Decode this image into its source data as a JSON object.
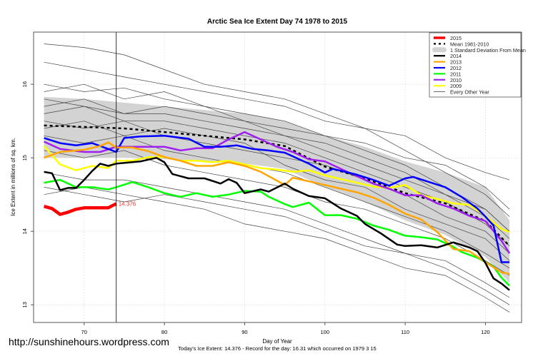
{
  "chart_data": {
    "type": "line",
    "title": "Arctic Sea Ice Extent Day 74 1978 to 2015",
    "xlabel": "Day of Year",
    "ylabel": "Ice Extent in millions of sq. km.",
    "xlim": [
      63.7,
      124.5
    ],
    "ylim": [
      12.76,
      16.71
    ],
    "xticks": [
      70,
      80,
      90,
      100,
      110,
      120
    ],
    "yticks": [
      13,
      14,
      15,
      16
    ],
    "grid": true,
    "legend_position": "top-right",
    "current_day": 74,
    "current_value_label": "14.376",
    "footer": "Today's Ice Extent: 14.376  - Record for the day: 16.31 which occurred on 1979 3 15",
    "watermark": "http://sunshinehours.wordpress.com",
    "legend": [
      {
        "label": "2015",
        "color": "#ff0000",
        "style": "thick"
      },
      {
        "label": "Mean 1981-2010",
        "color": "#000000",
        "style": "dashed"
      },
      {
        "label": "1 Standard Deviation From Mean",
        "color": "#d3d3d3",
        "style": "band"
      },
      {
        "label": "2014",
        "color": "#000000",
        "style": "line"
      },
      {
        "label": "2013",
        "color": "#ffa500",
        "style": "line"
      },
      {
        "label": "2012",
        "color": "#0000ff",
        "style": "line"
      },
      {
        "label": "2011",
        "color": "#00ff00",
        "style": "line"
      },
      {
        "label": "2010",
        "color": "#a020f0",
        "style": "line"
      },
      {
        "label": "2009",
        "color": "#ffff00",
        "style": "line"
      },
      {
        "label": "Every Other Year",
        "color": "#444444",
        "style": "thin"
      }
    ],
    "band": {
      "x": [
        65,
        70,
        75,
        80,
        85,
        90,
        95,
        100,
        105,
        110,
        115,
        120,
        123
      ],
      "upper": [
        15.83,
        15.8,
        15.75,
        15.7,
        15.65,
        15.6,
        15.5,
        15.3,
        15.15,
        14.95,
        14.8,
        14.6,
        14.15
      ],
      "lower": [
        15.0,
        15.0,
        15.0,
        14.98,
        14.95,
        14.92,
        14.85,
        14.6,
        14.4,
        14.15,
        13.95,
        13.65,
        13.3
      ]
    },
    "mean": {
      "name": "Mean 1981-2010",
      "x": [
        65,
        70,
        75,
        80,
        85,
        90,
        95,
        100,
        105,
        110,
        115,
        120,
        123
      ],
      "y": [
        15.44,
        15.42,
        15.4,
        15.35,
        15.3,
        15.25,
        15.16,
        14.88,
        14.72,
        14.52,
        14.38,
        14.14,
        13.8
      ]
    },
    "other_years": {
      "x": [
        65,
        70,
        75,
        80,
        85,
        90,
        95,
        100,
        105,
        110,
        115,
        120,
        123
      ],
      "series": [
        [
          16.55,
          16.5,
          16.4,
          16.2,
          16.0,
          15.9,
          15.8,
          15.6,
          15.4,
          15.3,
          15.0,
          14.8,
          14.7
        ],
        [
          16.3,
          16.2,
          16.1,
          16.0,
          15.9,
          15.8,
          15.7,
          15.5,
          15.4,
          15.1,
          14.8,
          14.5,
          14.2
        ],
        [
          16.0,
          15.9,
          15.95,
          15.8,
          15.7,
          15.6,
          15.5,
          15.3,
          15.1,
          14.9,
          14.6,
          14.3,
          14.0
        ],
        [
          15.8,
          15.7,
          15.6,
          15.7,
          15.6,
          15.5,
          15.3,
          15.1,
          14.9,
          14.7,
          14.5,
          14.2,
          13.9
        ],
        [
          15.6,
          15.7,
          15.5,
          15.5,
          15.4,
          15.3,
          15.2,
          15.0,
          14.8,
          14.6,
          14.4,
          14.1,
          13.8
        ],
        [
          15.5,
          15.4,
          15.5,
          15.3,
          15.2,
          15.1,
          15.0,
          14.9,
          14.7,
          14.5,
          14.2,
          14.0,
          13.7
        ],
        [
          15.4,
          15.5,
          15.3,
          15.4,
          15.3,
          15.2,
          14.9,
          14.7,
          14.6,
          14.3,
          14.1,
          13.9,
          13.6
        ],
        [
          15.3,
          15.2,
          15.3,
          15.1,
          15.0,
          14.9,
          14.8,
          14.6,
          14.4,
          14.2,
          14.0,
          13.7,
          13.5
        ],
        [
          15.7,
          15.8,
          15.6,
          15.6,
          15.5,
          15.4,
          15.3,
          15.2,
          15.0,
          14.8,
          14.5,
          14.3,
          14.0
        ],
        [
          14.8,
          14.7,
          14.7,
          14.6,
          14.5,
          14.4,
          14.3,
          14.1,
          13.9,
          13.7,
          13.6,
          13.3,
          13.1
        ],
        [
          14.5,
          14.6,
          14.5,
          14.4,
          14.3,
          14.1,
          14.0,
          13.9,
          13.7,
          13.5,
          13.4,
          13.1,
          12.9
        ],
        [
          14.6,
          14.5,
          14.4,
          14.5,
          14.4,
          14.3,
          14.2,
          14.0,
          13.8,
          13.7,
          13.5,
          13.2,
          13.0
        ],
        [
          15.9,
          16.0,
          15.8,
          15.9,
          15.7,
          15.5,
          15.4,
          15.3,
          15.2,
          15.0,
          14.9,
          14.6,
          14.3
        ],
        [
          15.1,
          15.0,
          15.1,
          14.9,
          14.8,
          14.7,
          14.6,
          14.4,
          14.3,
          14.1,
          13.9,
          13.6,
          13.4
        ]
      ]
    },
    "series": [
      {
        "name": "2009",
        "color": "#ffff00",
        "x": [
          65,
          67,
          69,
          71,
          73,
          74,
          76,
          78,
          80,
          82,
          84,
          86,
          88,
          90,
          92,
          94,
          96,
          98,
          100,
          102,
          104,
          106,
          108,
          110,
          112,
          114,
          116,
          118,
          120,
          122,
          123
        ],
        "y": [
          15.16,
          14.91,
          14.83,
          14.89,
          14.86,
          14.96,
          14.96,
          15.01,
          15.01,
          14.96,
          14.96,
          14.94,
          14.96,
          14.91,
          14.86,
          14.84,
          14.81,
          14.83,
          14.76,
          14.71,
          14.66,
          14.61,
          14.59,
          14.63,
          14.49,
          14.44,
          14.38,
          14.36,
          14.21,
          14.03,
          13.99
        ]
      },
      {
        "name": "2010",
        "color": "#a020f0",
        "x": [
          65,
          67,
          70,
          72,
          74,
          76,
          78,
          80,
          82,
          84,
          86,
          88,
          90,
          92,
          94,
          96,
          98,
          100,
          102,
          104,
          106,
          108,
          110,
          112,
          114,
          116,
          118,
          120,
          122,
          123
        ],
        "y": [
          15.22,
          15.12,
          15.08,
          15.08,
          15.15,
          15.15,
          15.15,
          15.15,
          15.1,
          15.13,
          15.13,
          15.25,
          15.35,
          15.25,
          15.15,
          15.08,
          14.98,
          14.95,
          14.85,
          14.75,
          14.65,
          14.58,
          14.49,
          14.49,
          14.38,
          14.31,
          14.21,
          14.14,
          13.87,
          13.7
        ]
      },
      {
        "name": "2011",
        "color": "#00ff00",
        "x": [
          65,
          67,
          69,
          71,
          73,
          74,
          76,
          78,
          80,
          82,
          84,
          86,
          88,
          90,
          92,
          93,
          95,
          96,
          98,
          100,
          102,
          104,
          106,
          108,
          110,
          112,
          114,
          116,
          117,
          119,
          121,
          122,
          123
        ],
        "y": [
          14.66,
          14.7,
          14.6,
          14.6,
          14.57,
          14.6,
          14.67,
          14.6,
          14.52,
          14.47,
          14.52,
          14.47,
          14.5,
          14.55,
          14.54,
          14.47,
          14.37,
          14.33,
          14.39,
          14.22,
          14.22,
          14.17,
          14.08,
          14.02,
          13.94,
          13.92,
          13.89,
          13.79,
          13.72,
          13.64,
          13.52,
          13.37,
          13.26
        ]
      },
      {
        "name": "2012",
        "color": "#0000ff",
        "x": [
          65,
          67,
          69,
          71,
          73,
          74,
          75,
          77,
          80,
          83,
          85,
          87,
          89,
          91,
          93,
          95,
          96,
          98,
          100,
          101,
          104,
          106,
          108,
          110,
          111,
          113,
          115,
          117,
          119,
          120,
          121,
          122,
          123
        ],
        "y": [
          15.27,
          15.2,
          15.17,
          15.2,
          15.12,
          15.08,
          15.27,
          15.29,
          15.3,
          15.26,
          15.15,
          15.15,
          15.17,
          15.12,
          15.1,
          15.07,
          15.02,
          14.92,
          14.8,
          14.85,
          14.77,
          14.7,
          14.62,
          14.72,
          14.74,
          14.67,
          14.6,
          14.47,
          14.31,
          14.2,
          14.08,
          13.58,
          13.58
        ]
      },
      {
        "name": "2013",
        "color": "#ffa500",
        "x": [
          65,
          67,
          70,
          72,
          73,
          74,
          76,
          78,
          80,
          82,
          84,
          86,
          88,
          90,
          92,
          94,
          95,
          96,
          98,
          100,
          102,
          104,
          106,
          108,
          110,
          112,
          114,
          116,
          118,
          120,
          122,
          123
        ],
        "y": [
          15.0,
          15.08,
          15.11,
          15.16,
          15.21,
          15.14,
          15.14,
          15.09,
          15.01,
          14.96,
          14.89,
          14.89,
          14.94,
          14.89,
          14.81,
          14.69,
          14.63,
          14.73,
          14.68,
          14.63,
          14.58,
          14.53,
          14.46,
          14.36,
          14.24,
          14.16,
          13.99,
          13.76,
          13.73,
          13.58,
          13.44,
          13.42
        ]
      },
      {
        "name": "2014",
        "color": "#000000",
        "x": [
          65,
          66,
          67,
          68,
          69,
          70,
          71,
          72,
          73,
          74,
          77,
          79,
          80,
          81,
          83,
          85,
          87,
          88,
          89,
          90,
          92,
          93,
          95,
          96,
          98,
          100,
          102,
          104,
          105,
          107,
          109,
          110,
          112,
          114,
          116,
          118,
          119,
          120,
          121,
          122,
          123
        ],
        "y": [
          14.81,
          14.79,
          14.56,
          14.59,
          14.59,
          14.7,
          14.82,
          14.92,
          14.89,
          14.92,
          14.95,
          15.0,
          14.94,
          14.78,
          14.72,
          14.72,
          14.65,
          14.71,
          14.66,
          14.52,
          14.57,
          14.54,
          14.65,
          14.58,
          14.48,
          14.45,
          14.31,
          14.21,
          14.1,
          13.97,
          13.82,
          13.8,
          13.81,
          13.78,
          13.85,
          13.78,
          13.73,
          13.57,
          13.36,
          13.29,
          13.2
        ]
      },
      {
        "name": "2015",
        "color": "#ff0000",
        "x": [
          65,
          66,
          67,
          68,
          69,
          70,
          71,
          72,
          73,
          74
        ],
        "y": [
          14.34,
          14.31,
          14.23,
          14.26,
          14.3,
          14.32,
          14.32,
          14.32,
          14.32,
          14.376
        ]
      }
    ]
  }
}
